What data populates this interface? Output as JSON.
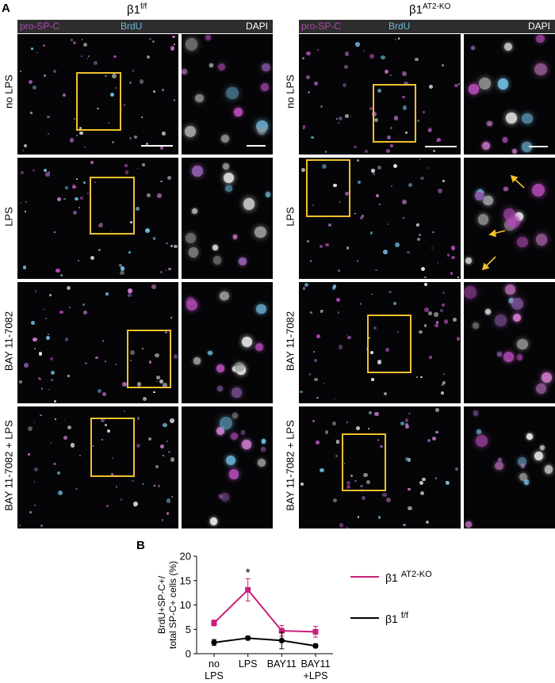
{
  "panel_a": {
    "letter": "A",
    "left_column": {
      "title_main": "β1",
      "title_sup": "f/f"
    },
    "right_column": {
      "title_main": "β1",
      "title_sup": "AT2-KO"
    },
    "channels": [
      {
        "label": "pro-SP-C",
        "color": "#b04ab4"
      },
      {
        "label": "BrdU",
        "color": "#6fb7d8"
      },
      {
        "label": "DAPI",
        "color": "#ffffff"
      }
    ],
    "rows": [
      "no LPS",
      "LPS",
      "BAY 11-7082",
      "BAY 11-7082 + LPS"
    ],
    "roi_color": "#f0c12c"
  },
  "panel_b": {
    "letter": "B"
  },
  "chart_data": {
    "type": "line",
    "categories": [
      "no\nLPS",
      "LPS",
      "BAY11",
      "BAY11\n+LPS"
    ],
    "ylabel": "BrdU+SP-C+/\ntotal SP-C+ cells (%)",
    "ylim": [
      0,
      20
    ],
    "yticks": [
      0,
      5,
      10,
      15,
      20
    ],
    "grid": false,
    "legend_placement": "right",
    "annotation": {
      "text": "*",
      "category": "LPS"
    },
    "series": [
      {
        "name": "β1 AT2-KO",
        "name_main": "β1",
        "name_sup": "AT2-KO",
        "color": "#c8207a",
        "values": [
          6.3,
          13.1,
          4.7,
          4.5
        ],
        "errors": [
          0.6,
          2.3,
          1.1,
          1.1
        ]
      },
      {
        "name": "β1 f/f",
        "name_main": "β1",
        "name_sup": "f/f",
        "color": "#000000",
        "values": [
          2.3,
          3.2,
          2.7,
          1.6
        ],
        "errors": [
          0.6,
          0.4,
          1.7,
          0.4
        ]
      }
    ]
  }
}
